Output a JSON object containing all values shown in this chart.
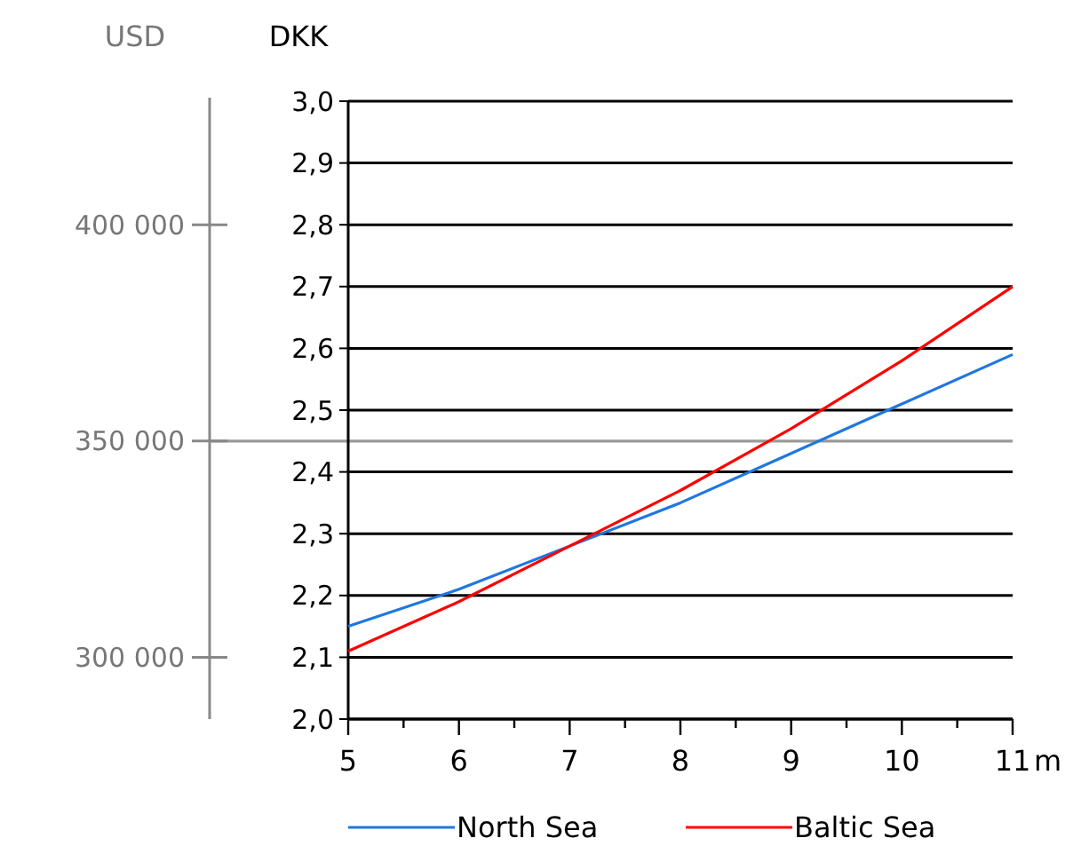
{
  "chart_data": {
    "type": "line",
    "ylabel": "DKK",
    "y2label": "USD",
    "xlabel": "m",
    "x": [
      5,
      6,
      7,
      8,
      9,
      10,
      11
    ],
    "series": [
      {
        "name": "North Sea",
        "color": "#1f77e0",
        "values": [
          2.15,
          2.21,
          2.28,
          2.35,
          2.43,
          2.51,
          2.59
        ]
      },
      {
        "name": "Baltic Sea",
        "color": "#ff0000",
        "values": [
          2.11,
          2.19,
          2.28,
          2.37,
          2.47,
          2.58,
          2.7
        ]
      }
    ],
    "xlim": [
      5,
      11
    ],
    "xticks": [
      5,
      {
        "value": 5.5,
        "label": null
      },
      6,
      {
        "value": 6.5,
        "label": null
      },
      7,
      {
        "value": 7.5,
        "label": null
      },
      8,
      {
        "value": 8.5,
        "label": null
      },
      9,
      {
        "value": 9.5,
        "label": null
      },
      10,
      {
        "value": 10.5,
        "label": null
      },
      11
    ],
    "ylim": [
      2.0,
      3.0
    ],
    "yticks": [
      {
        "value": 2.0,
        "label": "2,0"
      },
      {
        "value": 2.1,
        "label": "2,1"
      },
      {
        "value": 2.2,
        "label": "2,2"
      },
      {
        "value": 2.3,
        "label": "2,3"
      },
      {
        "value": 2.4,
        "label": "2,4"
      },
      {
        "value": 2.5,
        "label": "2,5"
      },
      {
        "value": 2.6,
        "label": "2,6"
      },
      {
        "value": 2.7,
        "label": "2,7"
      },
      {
        "value": 2.8,
        "label": "2,8"
      },
      {
        "value": 2.9,
        "label": "2,9"
      },
      {
        "value": 3.0,
        "label": "3,0"
      }
    ],
    "y2lim": [
      285714,
      428571
    ],
    "y2ticks": [
      {
        "value": 300000,
        "label": "300 000"
      },
      {
        "value": 350000,
        "label": "350 000"
      },
      {
        "value": 400000,
        "label": "400 000"
      }
    ],
    "ref_lines": [
      {
        "axis": "y",
        "value": 2.45,
        "color": "#999999"
      }
    ],
    "grid": "y",
    "legend": "bottom",
    "line_style": "solid"
  }
}
